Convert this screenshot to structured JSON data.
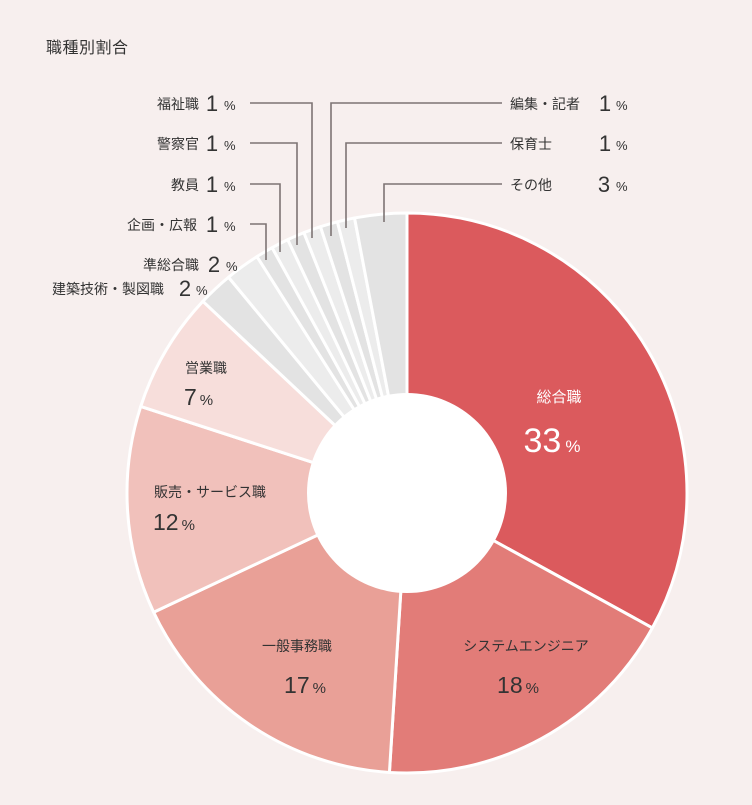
{
  "title": "職種別割合",
  "chart_data": {
    "type": "pie",
    "subtype": "donut",
    "title": "職種別割合",
    "start_angle_deg": 0,
    "direction": "clockwise",
    "unit": "%",
    "categories": [
      "総合職",
      "システムエンジニア",
      "一般事務職",
      "販売・サービス職",
      "営業職",
      "建築技術・製図職",
      "準総合職",
      "企画・広報",
      "教員",
      "警察官",
      "福祉職",
      "編集・記者",
      "保育士",
      "その他"
    ],
    "values": [
      33,
      18,
      17,
      12,
      7,
      2,
      2,
      1,
      1,
      1,
      1,
      1,
      1,
      3
    ],
    "colors": [
      "#db5a5d",
      "#e27c78",
      "#e9a097",
      "#f1c1bb",
      "#f7dedb",
      "#e3e3e3",
      "#ececec",
      "#e3e3e3",
      "#ececec",
      "#e3e3e3",
      "#ececec",
      "#e3e3e3",
      "#ececec",
      "#e3e3e3"
    ],
    "legend": "callout-labels"
  },
  "labels": {
    "sougou": {
      "name": "総合職",
      "value": "33",
      "unit": "%"
    },
    "se": {
      "name": "システムエンジニア",
      "value": "18",
      "unit": "%"
    },
    "jimu": {
      "name": "一般事務職",
      "value": "17",
      "unit": "%"
    },
    "hanbai": {
      "name": "販売・サービス職",
      "value": "12",
      "unit": "%"
    },
    "eigyo": {
      "name": "営業職",
      "value": "7",
      "unit": "%"
    },
    "kenchiku": {
      "name": "建築技術・製図職",
      "value": "2",
      "unit": "%"
    },
    "junsougou": {
      "name": "準総合職",
      "value": "2",
      "unit": "%"
    },
    "kikaku": {
      "name": "企画・広報",
      "value": "1",
      "unit": "%"
    },
    "kyoin": {
      "name": "教員",
      "value": "1",
      "unit": "%"
    },
    "keisatsu": {
      "name": "警察官",
      "value": "1",
      "unit": "%"
    },
    "fukushi": {
      "name": "福祉職",
      "value": "1",
      "unit": "%"
    },
    "henshu": {
      "name": "編集・記者",
      "value": "1",
      "unit": "%"
    },
    "hoiku": {
      "name": "保育士",
      "value": "1",
      "unit": "%"
    },
    "sonota": {
      "name": "その他",
      "value": "3",
      "unit": "%"
    }
  }
}
